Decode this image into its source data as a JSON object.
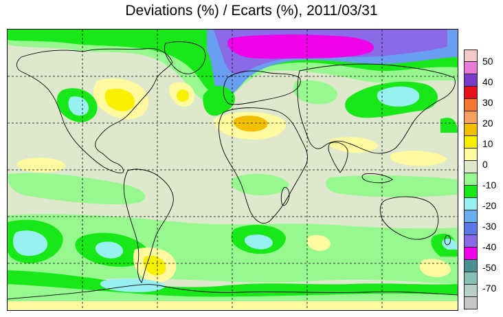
{
  "title": "Deviations (%) / Ecarts (%), 2011/03/31",
  "legend": {
    "labels": [
      "50",
      "40",
      "30",
      "20",
      "10",
      "0",
      "-10",
      "-20",
      "-30",
      "-40",
      "-50",
      "-70"
    ],
    "colors": [
      "#f6c8c8",
      "#e87ad8",
      "#7a3cc8",
      "#e8101a",
      "#f87830",
      "#f8a060",
      "#f0c000",
      "#f8f000",
      "#fffaa0",
      "#dde8cc",
      "#98f890",
      "#18e818",
      "#98f0f0",
      "#6ab0f0",
      "#5a78e8",
      "#8a6ae8",
      "#f000e8",
      "#4a9090",
      "#88c0b8",
      "#b8d0c8",
      "#c8c8c8"
    ]
  },
  "map": {
    "colors": {
      "background": "#dde8cc",
      "light_green": "#98f890",
      "green": "#18e818",
      "cyan": "#98f0f0",
      "blue": "#6a9ef0",
      "violet": "#8a6ae8",
      "magenta": "#f000e8",
      "pale_yellow": "#fffaa0",
      "yellow": "#f8f000",
      "orange": "#f0c000",
      "grid": "#000000",
      "coast": "#000000"
    }
  }
}
